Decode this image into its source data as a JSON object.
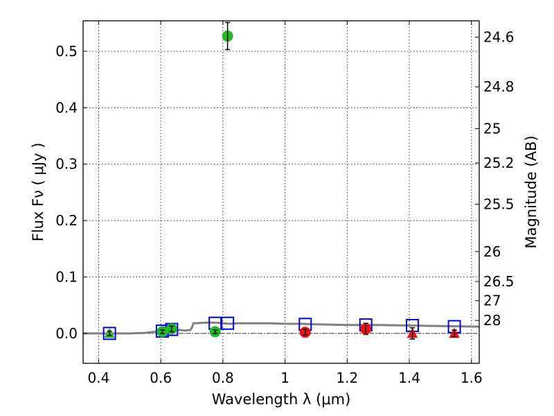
{
  "chart_data": {
    "type": "scatter",
    "title": "",
    "xlabel": "Wavelength  λ (μm)",
    "ylabel": "Flux  Fν  ( μJy )",
    "ylabel_right": "Magnitude (AB)",
    "xlim": [
      0.35,
      1.625
    ],
    "ylim": [
      -0.053,
      0.554
    ],
    "x_ticks": [
      0.4,
      0.6,
      0.8,
      1.0,
      1.2,
      1.4,
      1.6
    ],
    "x_tick_labels": [
      "0.4",
      "0.6",
      "0.8",
      "1",
      "1.2",
      "1.4",
      "1.6"
    ],
    "y_ticks": [
      0.0,
      0.1,
      0.2,
      0.3,
      0.4,
      0.5
    ],
    "y_tick_labels": [
      "0.0",
      "0.1",
      "0.2",
      "0.3",
      "0.4",
      "0.5"
    ],
    "right_ticks": [
      {
        "flux": 0.525,
        "label": "24.6"
      },
      {
        "flux": 0.437,
        "label": "24.8"
      },
      {
        "flux": 0.363,
        "label": "25"
      },
      {
        "flux": 0.302,
        "label": "25.2"
      },
      {
        "flux": 0.229,
        "label": "25.5"
      },
      {
        "flux": 0.145,
        "label": "26"
      },
      {
        "flux": 0.092,
        "label": "26.5"
      },
      {
        "flux": 0.058,
        "label": "27"
      },
      {
        "flux": 0.023,
        "label": "28"
      }
    ],
    "grid": true,
    "colors": {
      "green": "#22bb22",
      "red": "#ee1111",
      "model": "#808080",
      "box": "#0000ee",
      "errorbar": "#000000"
    },
    "zero_line": 0.0,
    "model_sed": {
      "x": [
        0.35,
        0.44,
        0.5,
        0.55,
        0.58,
        0.6,
        0.62,
        0.635,
        0.65,
        0.66,
        0.68,
        0.695,
        0.7,
        0.705,
        0.75,
        0.78,
        0.8,
        0.82,
        0.85,
        0.9,
        0.95,
        1.0,
        1.05,
        1.1,
        1.2,
        1.3,
        1.4,
        1.5,
        1.625
      ],
      "y": [
        0.0,
        0.0,
        0.0,
        0.001,
        0.003,
        0.004,
        0.005,
        0.007,
        0.007,
        0.006,
        0.005,
        0.006,
        0.01,
        0.018,
        0.019,
        0.019,
        0.018,
        0.017,
        0.018,
        0.018,
        0.018,
        0.017,
        0.017,
        0.016,
        0.015,
        0.015,
        0.014,
        0.013,
        0.012
      ]
    },
    "model_boxes": [
      {
        "x": 0.435,
        "y": 0.0
      },
      {
        "x": 0.605,
        "y": 0.004
      },
      {
        "x": 0.635,
        "y": 0.007
      },
      {
        "x": 0.775,
        "y": 0.018
      },
      {
        "x": 0.815,
        "y": 0.018
      },
      {
        "x": 1.065,
        "y": 0.016
      },
      {
        "x": 1.26,
        "y": 0.015
      },
      {
        "x": 1.41,
        "y": 0.014
      },
      {
        "x": 1.545,
        "y": 0.012
      }
    ],
    "points": [
      {
        "x": 0.435,
        "y": 0.0,
        "err": 0.004,
        "marker": "triangle",
        "color": "green"
      },
      {
        "x": 0.605,
        "y": 0.003,
        "err": 0.003,
        "marker": "circle",
        "color": "green"
      },
      {
        "x": 0.635,
        "y": 0.008,
        "err": 0.005,
        "marker": "circle",
        "color": "green"
      },
      {
        "x": 0.775,
        "y": 0.003,
        "err": 0.003,
        "marker": "circle",
        "color": "green"
      },
      {
        "x": 0.815,
        "y": 0.527,
        "err": 0.024,
        "marker": "circle",
        "color": "green"
      },
      {
        "x": 1.065,
        "y": 0.002,
        "err": 0.005,
        "marker": "circle",
        "color": "red"
      },
      {
        "x": 1.26,
        "y": 0.008,
        "err": 0.01,
        "marker": "circle",
        "color": "red"
      },
      {
        "x": 1.41,
        "y": 0.0,
        "err": 0.01,
        "marker": "triangle",
        "color": "red"
      },
      {
        "x": 1.545,
        "y": 0.0,
        "err": 0.006,
        "marker": "triangle",
        "color": "red"
      }
    ]
  }
}
